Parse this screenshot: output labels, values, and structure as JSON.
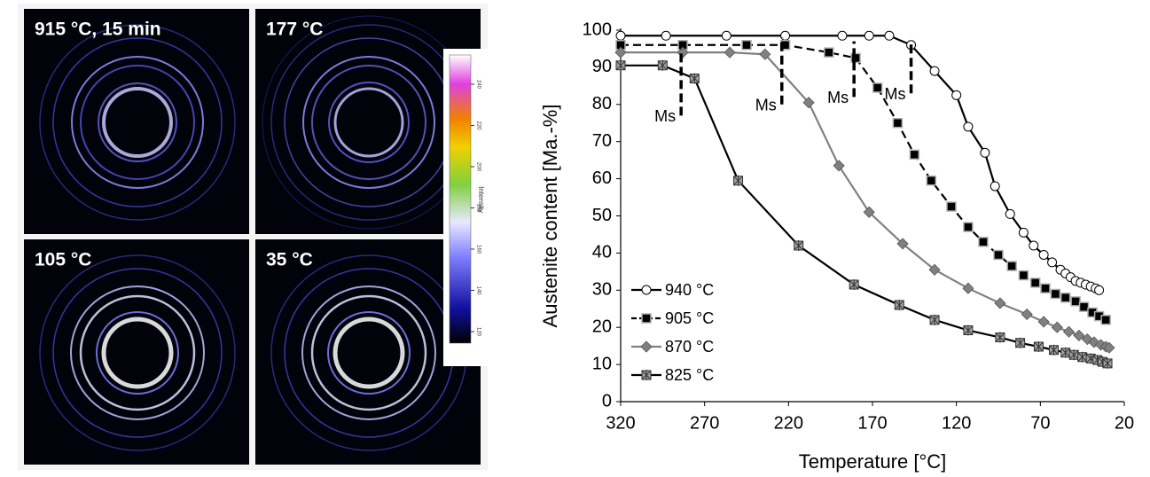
{
  "images": {
    "panels": [
      {
        "label": "915 °C, 15 min"
      },
      {
        "label": "177 °C"
      },
      {
        "label": "105 °C"
      },
      {
        "label": "35 °C"
      }
    ],
    "colorbar": {
      "label": "Intensity",
      "ticks": [
        120,
        140,
        160,
        180,
        200,
        220,
        240
      ]
    }
  },
  "chart_data": {
    "type": "line",
    "x_label": "Temperature [°C]",
    "y_label": "Austenite content [Ma.-%]",
    "xlim": [
      320,
      20
    ],
    "ylim": [
      0,
      100
    ],
    "xticks": [
      320,
      270,
      220,
      170,
      120,
      70,
      20
    ],
    "yticks": [
      0,
      10,
      20,
      30,
      40,
      50,
      60,
      70,
      80,
      90,
      100
    ],
    "legend": "lower left",
    "series": [
      {
        "name": "940 °C",
        "color": "#000000",
        "line_style": "solid",
        "marker": "circle",
        "marker_fill": "#ffffff",
        "x": [
          320,
          293,
          257,
          222,
          188,
          172,
          160,
          147,
          133,
          120,
          113,
          103,
          97,
          88,
          80,
          74,
          68,
          63,
          58,
          55,
          52,
          49,
          46,
          43,
          40,
          37,
          35
        ],
        "values": [
          98.5,
          98.5,
          98.5,
          98.5,
          98.5,
          98.5,
          98.5,
          96,
          89,
          82.5,
          74,
          67,
          58,
          50.5,
          45.5,
          42,
          39.5,
          37.5,
          35.5,
          34.5,
          33.5,
          32.5,
          32,
          31.5,
          31,
          30.5,
          30
        ]
      },
      {
        "name": "905 °C",
        "color": "#000000",
        "line_style": "dashed",
        "marker": "square",
        "marker_fill": "#000000",
        "x": [
          320,
          283,
          245,
          222,
          196,
          180,
          167,
          155,
          145,
          135,
          123,
          113,
          104,
          95,
          87,
          80,
          73,
          67,
          61,
          55,
          49,
          44,
          39,
          35,
          31
        ],
        "values": [
          96,
          96,
          96,
          96,
          94,
          92.5,
          84.5,
          75,
          66.5,
          59.5,
          52.5,
          47,
          43,
          39.5,
          36.5,
          34,
          32,
          30.5,
          29,
          28,
          27,
          25.5,
          24,
          23,
          22
        ]
      },
      {
        "name": "870 °C",
        "color": "#808080",
        "line_style": "solid",
        "marker": "diamond",
        "marker_fill": "#808080",
        "x": [
          320,
          283,
          255,
          234,
          208,
          190,
          172,
          152,
          133,
          113,
          94,
          78,
          68,
          60,
          53,
          47,
          42,
          38,
          34,
          31,
          29
        ],
        "values": [
          94,
          94,
          94,
          93.5,
          80.5,
          63.5,
          51,
          42.5,
          35.5,
          30.5,
          26.5,
          23.5,
          21.5,
          20,
          18.8,
          17.8,
          16.8,
          16,
          15.3,
          14.8,
          14.5
        ]
      },
      {
        "name": "825 °C",
        "color": "#000000",
        "line_style": "solid",
        "marker": "star-square",
        "marker_fill": "#a0a0a0",
        "x": [
          320,
          295,
          276,
          250,
          214,
          181,
          154,
          133,
          113,
          94,
          82,
          71,
          62,
          55,
          50,
          45,
          40,
          36,
          33,
          30
        ],
        "values": [
          90.5,
          90.5,
          87,
          59.5,
          42,
          31.5,
          26,
          22,
          19.2,
          17.3,
          15.8,
          14.8,
          13.9,
          13.2,
          12.6,
          12,
          11.6,
          11.2,
          10.7,
          10.3
        ]
      }
    ],
    "annotations": [
      {
        "text": "Ms",
        "x": 284,
        "y": [
          77,
          95
        ]
      },
      {
        "text": "Ms",
        "x": 224,
        "y": [
          80,
          98
        ]
      },
      {
        "text": "Ms",
        "x": 181,
        "y": [
          82,
          97
        ]
      },
      {
        "text": "Ms",
        "x": 147,
        "y": [
          83,
          97
        ]
      }
    ]
  }
}
